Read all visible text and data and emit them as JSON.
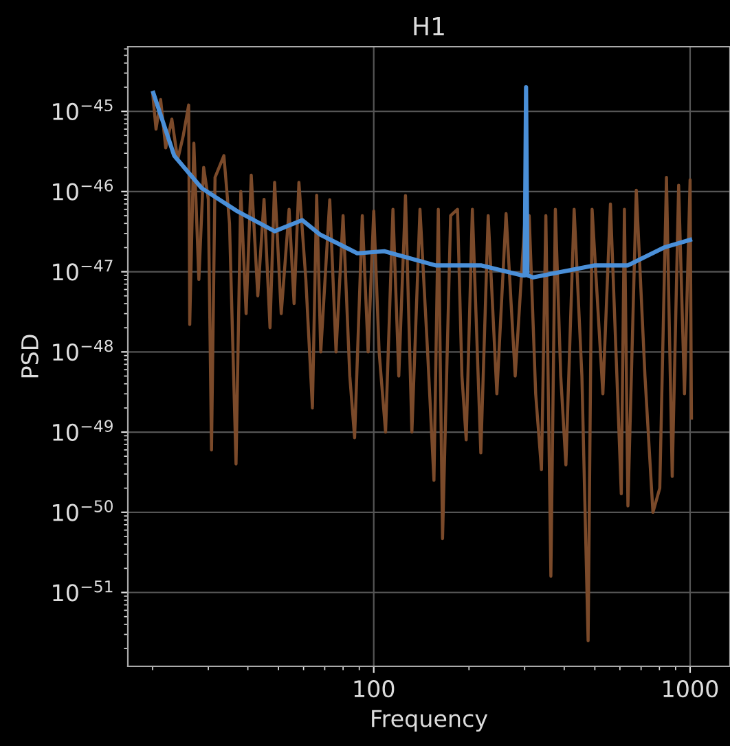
{
  "chart_data": {
    "type": "line",
    "title": "H1",
    "xlabel": "Frequency",
    "ylabel": "PSD",
    "log": "xy",
    "grid": true,
    "xlim": [
      16.7,
      1337
    ],
    "xticks": [
      100,
      1000
    ],
    "ylim": [
      1.2e-52,
      6.4e-45
    ],
    "yticks": [
      {
        "value": 1e-45,
        "label": "10$^{−45}$"
      },
      {
        "value": 1e-46,
        "label": "10$^{−46}$"
      },
      {
        "value": 1e-47,
        "label": "10$^{−47}$"
      },
      {
        "value": 1e-48,
        "label": "10$^{−48}$"
      },
      {
        "value": 1e-49,
        "label": "10$^{−49}$"
      },
      {
        "value": 1e-50,
        "label": "10$^{−50}$"
      },
      {
        "value": 1e-51,
        "label": "10$^{−51}$"
      }
    ],
    "series": [
      {
        "color": "#7b4a2a",
        "x": [
          20,
          20.5,
          21.2,
          22,
          23,
          24,
          25,
          26,
          26.2,
          27,
          28,
          29,
          30,
          30.7,
          31.5,
          33.6,
          35,
          36.7,
          38,
          39.5,
          41,
          43,
          45,
          47,
          48.6,
          51,
          54,
          56,
          58,
          61,
          64,
          66,
          68,
          72.6,
          76,
          80,
          84,
          87,
          92,
          96,
          100,
          104,
          109,
          115,
          120,
          126,
          132,
          140,
          148,
          155,
          160,
          165,
          175,
          184,
          190,
          196,
          205,
          218,
          230,
          245,
          262,
          280,
          300,
          310,
          325,
          339,
          350,
          363,
          375,
          390,
          405,
          430,
          455,
          476,
          490,
          530,
          560,
          606,
          620,
          636,
          676,
          720,
          763,
          802,
          842,
          878,
          920,
          960,
          1000,
          1010
        ],
        "values": [
          1.7e-45,
          6e-46,
          1.4e-45,
          3.5e-46,
          8e-46,
          2.5e-46,
          5e-46,
          1.2e-45,
          2.2e-48,
          4e-46,
          8e-48,
          2e-46,
          8e-47,
          6e-50,
          1.5e-46,
          2.8e-46,
          4e-47,
          4e-50,
          1e-46,
          3e-48,
          1.6e-46,
          5e-48,
          8e-47,
          2e-48,
          1.3e-46,
          3e-48,
          6e-47,
          4e-48,
          1.3e-46,
          8e-48,
          2e-49,
          9e-47,
          1e-48,
          7.9e-47,
          1e-48,
          5e-47,
          5e-49,
          8.5e-50,
          5e-47,
          1e-48,
          5.7e-47,
          1e-48,
          1e-49,
          6e-47,
          5e-49,
          8.9e-47,
          1e-49,
          6e-47,
          1e-48,
          2.5e-50,
          6e-47,
          4.7e-51,
          5e-47,
          6e-47,
          5e-49,
          8e-50,
          6e-47,
          5.5e-50,
          5e-47,
          3e-49,
          5.3e-47,
          5e-49,
          4e-47,
          5e-47,
          3e-49,
          3.4e-50,
          5e-47,
          1.6e-51,
          6e-47,
          5e-49,
          3.9e-50,
          6e-47,
          5e-49,
          2.5e-52,
          6e-47,
          3e-49,
          7e-47,
          1.7e-50,
          6e-47,
          1.2e-50,
          1.04e-46,
          5e-49,
          1e-50,
          2e-50,
          1.5e-46,
          2.8e-50,
          1.2e-46,
          3e-49,
          1.4e-46,
          1.5e-49
        ]
      },
      {
        "color": "#4a8fd8",
        "x": [
          20.1,
          23.4,
          28.6,
          37,
          48.6,
          59.4,
          67.7,
          88.7,
          108,
          157,
          218,
          295,
          300,
          303,
          306,
          319,
          500,
          636,
          826,
          1000
        ],
        "values": [
          1.7e-45,
          2.8e-46,
          1.1e-46,
          5.7e-47,
          3.2e-47,
          4.4e-47,
          2.9e-47,
          1.7e-47,
          1.8e-47,
          1.2e-47,
          1.2e-47,
          9e-48,
          9e-48,
          2e-45,
          9e-48,
          8.5e-48,
          1.2e-47,
          1.2e-47,
          2e-47,
          2.5e-47
        ]
      }
    ]
  }
}
